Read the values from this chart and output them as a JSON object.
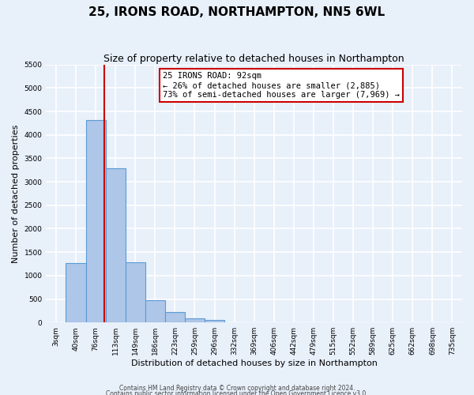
{
  "title": "25, IRONS ROAD, NORTHAMPTON, NN5 6WL",
  "subtitle": "Size of property relative to detached houses in Northampton",
  "xlabel": "Distribution of detached houses by size in Northampton",
  "ylabel": "Number of detached properties",
  "bar_labels": [
    "3sqm",
    "40sqm",
    "76sqm",
    "113sqm",
    "149sqm",
    "186sqm",
    "223sqm",
    "259sqm",
    "296sqm",
    "332sqm",
    "369sqm",
    "406sqm",
    "442sqm",
    "479sqm",
    "515sqm",
    "552sqm",
    "589sqm",
    "625sqm",
    "662sqm",
    "698sqm",
    "735sqm"
  ],
  "bar_values": [
    0,
    1270,
    4320,
    3280,
    1290,
    480,
    230,
    90,
    50,
    0,
    0,
    0,
    0,
    0,
    0,
    0,
    0,
    0,
    0,
    0,
    0
  ],
  "bar_color": "#aec6e8",
  "bar_edge_color": "#5b9bd5",
  "ylim": [
    0,
    5500
  ],
  "yticks": [
    0,
    500,
    1000,
    1500,
    2000,
    2500,
    3000,
    3500,
    4000,
    4500,
    5000,
    5500
  ],
  "annotation_line1": "25 IRONS ROAD: 92sqm",
  "annotation_line2": "← 26% of detached houses are smaller (2,885)",
  "annotation_line3": "73% of semi-detached houses are larger (7,969) →",
  "red_line_color": "#cc0000",
  "annotation_box_color": "#ffffff",
  "annotation_box_edge": "#cc0000",
  "footer1": "Contains HM Land Registry data © Crown copyright and database right 2024.",
  "footer2": "Contains public sector information licensed under the Open Government Licence v3.0.",
  "background_color": "#e8f0fa",
  "grid_color": "#ffffff",
  "title_fontsize": 11,
  "subtitle_fontsize": 9,
  "ylabel_fontsize": 8,
  "xlabel_fontsize": 8,
  "tick_fontsize": 6.5,
  "annot_fontsize": 7.5,
  "footer_fontsize": 5.5
}
